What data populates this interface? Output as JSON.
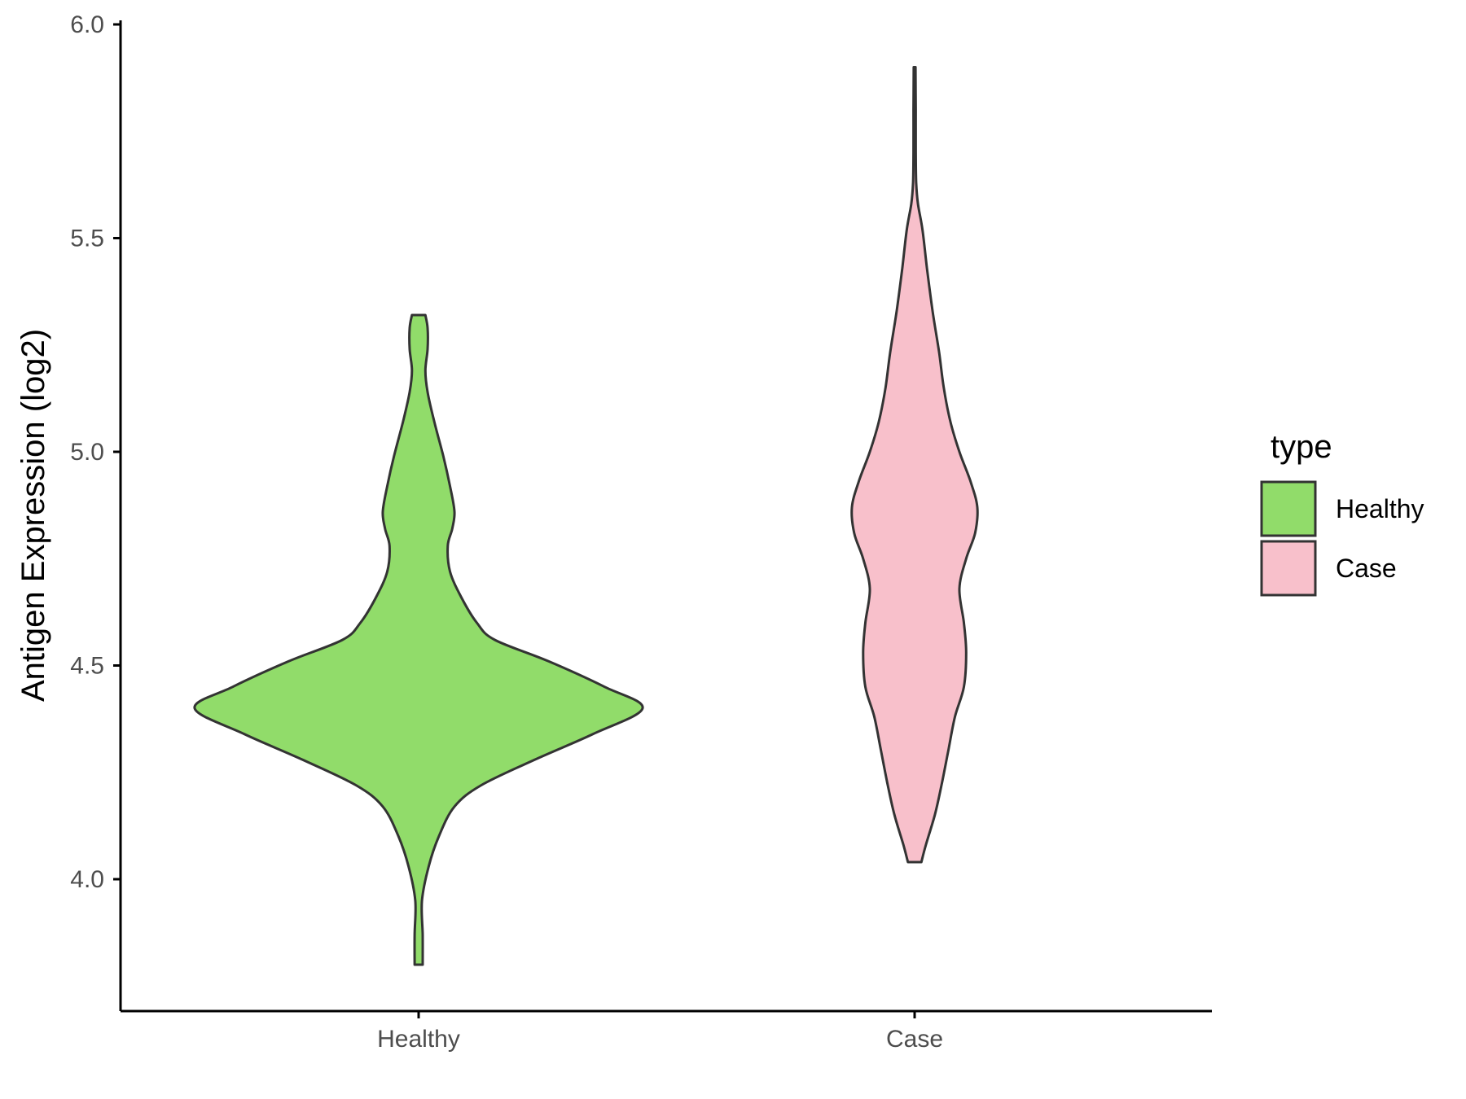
{
  "chart_data": {
    "type": "violin",
    "ylabel": "Antigen Expression (log2)",
    "xlabel": "",
    "ylim": [
      3.7,
      6.0
    ],
    "yticks": [
      "4.0",
      "4.5",
      "5.0",
      "5.5",
      "6.0"
    ],
    "categories": [
      "Healthy",
      "Case"
    ],
    "legend": {
      "title": "type",
      "placement": "right",
      "entries": [
        {
          "label": "Healthy",
          "color": "#91dc6a"
        },
        {
          "label": "Case",
          "color": "#f8c0cb"
        }
      ]
    },
    "outline_color": "#333333",
    "series": [
      {
        "name": "Healthy",
        "color": "#91dc6a",
        "min": 3.8,
        "max": 5.32,
        "density_profile": [
          [
            3.8,
            0.018
          ],
          [
            3.87,
            0.018
          ],
          [
            3.95,
            0.015
          ],
          [
            4.03,
            0.045
          ],
          [
            4.1,
            0.09
          ],
          [
            4.17,
            0.16
          ],
          [
            4.22,
            0.28
          ],
          [
            4.28,
            0.52
          ],
          [
            4.34,
            0.78
          ],
          [
            4.4,
            1.0
          ],
          [
            4.45,
            0.83
          ],
          [
            4.51,
            0.58
          ],
          [
            4.56,
            0.34
          ],
          [
            4.6,
            0.26
          ],
          [
            4.66,
            0.19
          ],
          [
            4.72,
            0.14
          ],
          [
            4.78,
            0.13
          ],
          [
            4.82,
            0.15
          ],
          [
            4.86,
            0.16
          ],
          [
            4.92,
            0.14
          ],
          [
            4.99,
            0.11
          ],
          [
            5.07,
            0.07
          ],
          [
            5.14,
            0.04
          ],
          [
            5.19,
            0.03
          ],
          [
            5.24,
            0.04
          ],
          [
            5.29,
            0.04
          ],
          [
            5.32,
            0.03
          ]
        ]
      },
      {
        "name": "Case",
        "color": "#f8c0cb",
        "min": 4.04,
        "max": 5.9,
        "density_profile": [
          [
            4.04,
            0.03
          ],
          [
            4.08,
            0.05
          ],
          [
            4.15,
            0.09
          ],
          [
            4.22,
            0.12
          ],
          [
            4.3,
            0.15
          ],
          [
            4.38,
            0.18
          ],
          [
            4.45,
            0.22
          ],
          [
            4.53,
            0.23
          ],
          [
            4.6,
            0.22
          ],
          [
            4.68,
            0.2
          ],
          [
            4.75,
            0.23
          ],
          [
            4.81,
            0.27
          ],
          [
            4.87,
            0.28
          ],
          [
            4.93,
            0.25
          ],
          [
            5.0,
            0.2
          ],
          [
            5.07,
            0.16
          ],
          [
            5.15,
            0.13
          ],
          [
            5.23,
            0.11
          ],
          [
            5.33,
            0.08
          ],
          [
            5.43,
            0.055
          ],
          [
            5.52,
            0.035
          ],
          [
            5.58,
            0.015
          ],
          [
            5.63,
            0.007
          ],
          [
            5.7,
            0.005
          ],
          [
            5.8,
            0.005
          ],
          [
            5.9,
            0.004
          ]
        ]
      }
    ]
  }
}
